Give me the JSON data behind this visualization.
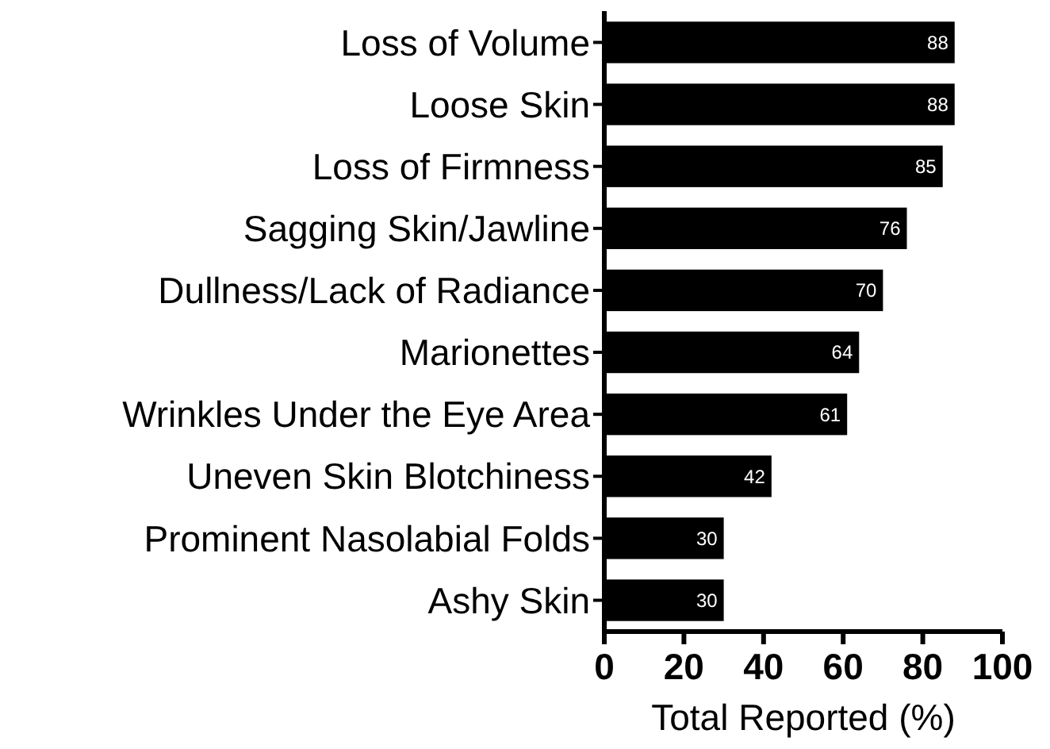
{
  "chart_data": {
    "type": "bar",
    "orientation": "horizontal",
    "xlabel": "Total Reported (%)",
    "categories": [
      "Loss of Volume",
      "Loose Skin",
      "Loss of Firmness",
      "Sagging Skin/Jawline",
      "Dullness/Lack of Radiance",
      "Marionettes",
      "Wrinkles Under the Eye Area",
      "Uneven Skin Blotchiness",
      "Prominent Nasolabial Folds",
      "Ashy Skin"
    ],
    "values": [
      88,
      88,
      85,
      76,
      70,
      64,
      61,
      42,
      30,
      30
    ],
    "color": "#000000",
    "xlim": [
      0,
      100
    ],
    "xticks": [
      0,
      20,
      40,
      60,
      80,
      100
    ],
    "data_labels": true
  }
}
